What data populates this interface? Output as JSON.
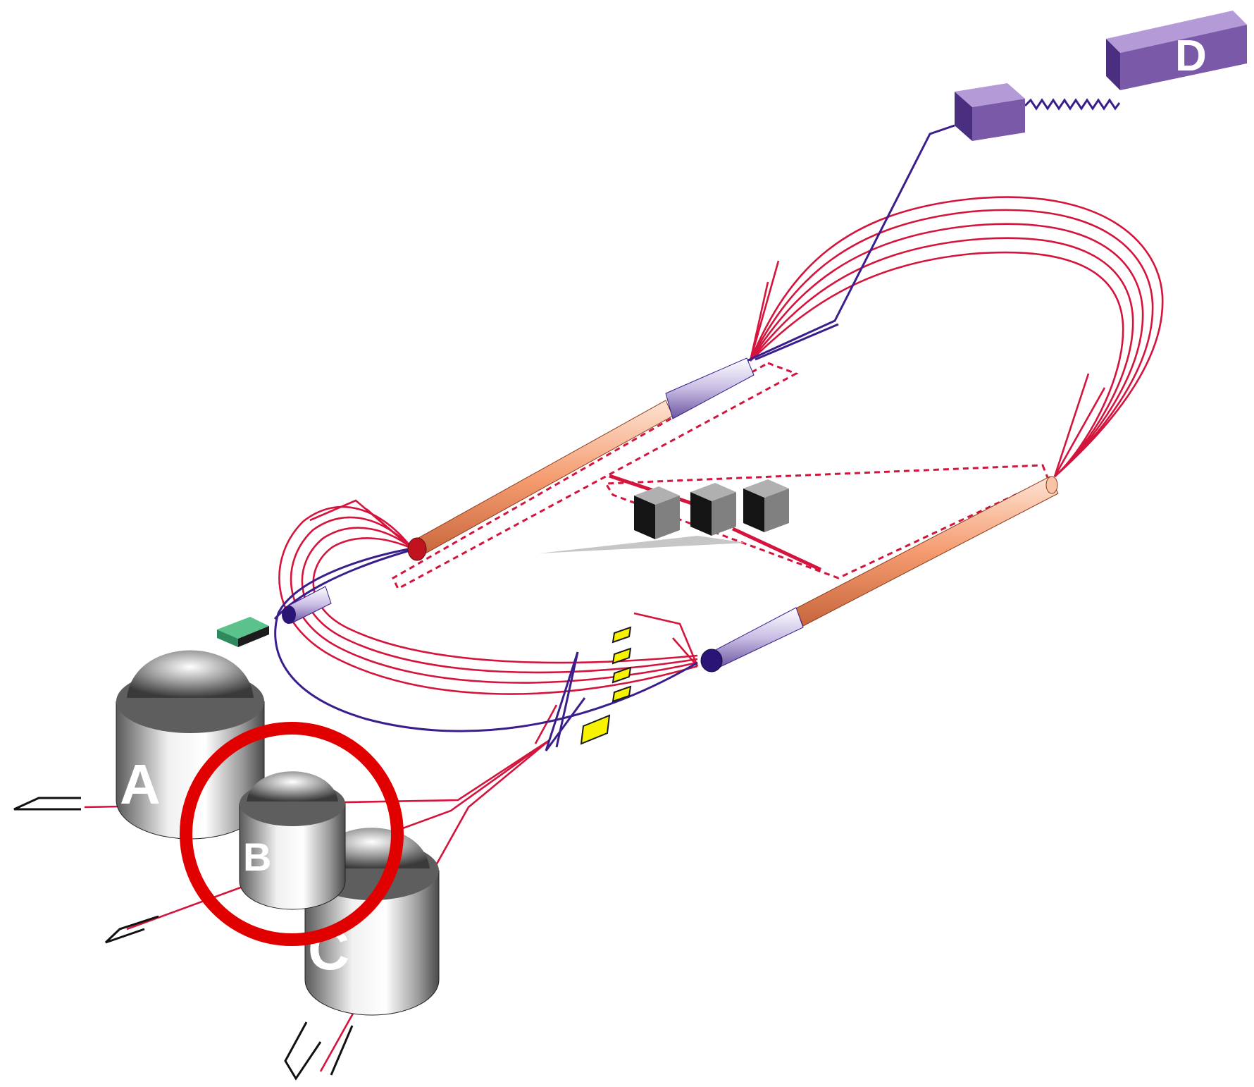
{
  "labels": {
    "a": "A",
    "b": "B",
    "c": "C",
    "d": "D"
  },
  "colors": {
    "beamline_red": "#d4143c",
    "beamline_purple": "#3a1f8c",
    "highlight_circle": "#e00000",
    "linac_orange": "#f6b38f",
    "module_purple": "#7a5aa8",
    "magnet_yellow": "#f7f300",
    "injector_green": "#3aa872"
  },
  "highlight": {
    "target": "B"
  }
}
